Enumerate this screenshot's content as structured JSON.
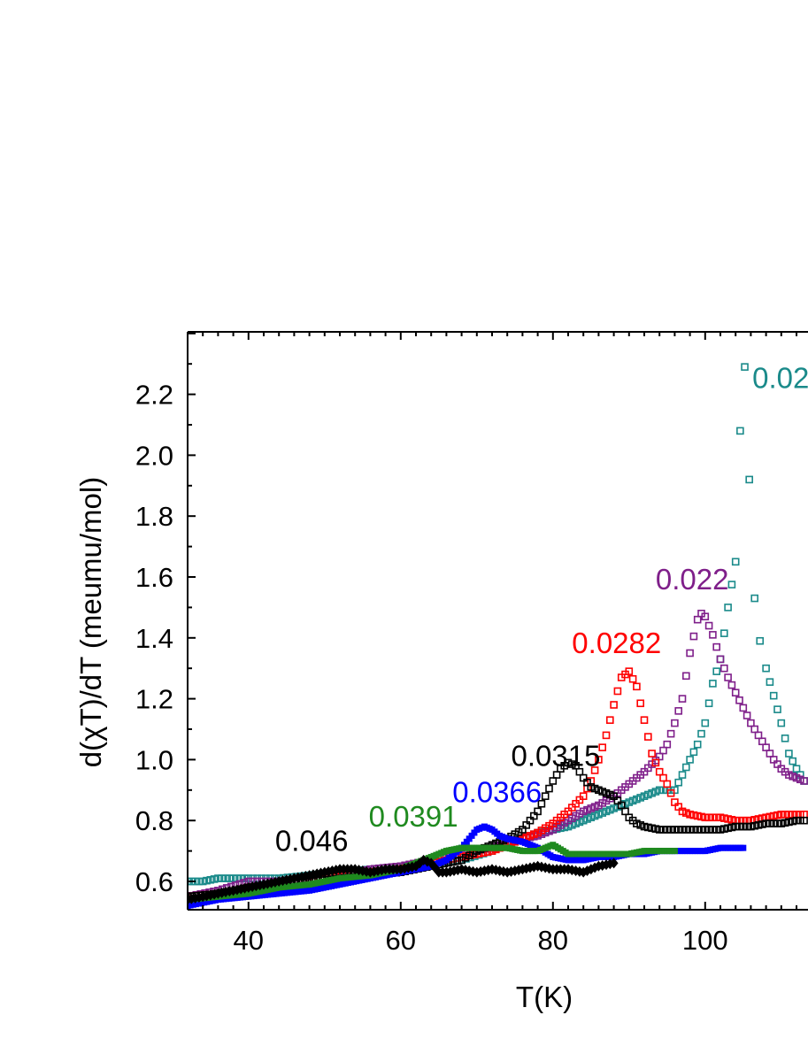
{
  "chart_data": {
    "type": "scatter",
    "xlabel": "T(K)",
    "ylabel": "d(χT)/dT (meumu/mol)",
    "xlim": [
      32,
      114
    ],
    "ylim": [
      0.51,
      2.4
    ],
    "xticks": [
      40,
      60,
      80,
      100
    ],
    "yticks": [
      0.6,
      0.8,
      1.0,
      1.2,
      1.4,
      1.6,
      1.8,
      2.0,
      2.2
    ],
    "ytick_labels": [
      "0.6",
      "0.8",
      "1.0",
      "1.2",
      "1.4",
      "1.6",
      "1.8",
      "2.0",
      "2.2"
    ],
    "series": [
      {
        "name": "0.02",
        "color": "#1a8a8a",
        "marker": "open-square",
        "points": [
          [
            32,
            0.6
          ],
          [
            34,
            0.6
          ],
          [
            36,
            0.61
          ],
          [
            38,
            0.61
          ],
          [
            40,
            0.61
          ],
          [
            44,
            0.61
          ],
          [
            48,
            0.62
          ],
          [
            52,
            0.63
          ],
          [
            56,
            0.64
          ],
          [
            60,
            0.65
          ],
          [
            64,
            0.66
          ],
          [
            68,
            0.67
          ],
          [
            72,
            0.7
          ],
          [
            74,
            0.73
          ],
          [
            76,
            0.74
          ],
          [
            78,
            0.76
          ],
          [
            80,
            0.77
          ],
          [
            82,
            0.78
          ],
          [
            84,
            0.8
          ],
          [
            86,
            0.82
          ],
          [
            88,
            0.84
          ],
          [
            90,
            0.86
          ],
          [
            92,
            0.88
          ],
          [
            94,
            0.9
          ],
          [
            95,
            0.9
          ],
          [
            96,
            0.9
          ],
          [
            97,
            0.95
          ],
          [
            98,
            1.0
          ],
          [
            99,
            1.05
          ],
          [
            100,
            1.12
          ],
          [
            101,
            1.25
          ],
          [
            102,
            1.33
          ],
          [
            103,
            1.5
          ],
          [
            104,
            1.65
          ],
          [
            104.6,
            2.08
          ],
          [
            105.2,
            2.29
          ],
          [
            105.8,
            1.92
          ],
          [
            106.5,
            1.53
          ],
          [
            107.2,
            1.39
          ],
          [
            108,
            1.3
          ],
          [
            109,
            1.21
          ],
          [
            110,
            1.12
          ],
          [
            111,
            1.02
          ],
          [
            112,
            0.97
          ],
          [
            113,
            0.93
          ]
        ]
      },
      {
        "name": "0.022",
        "color": "#7f1f8a",
        "marker": "open-square",
        "points": [
          [
            32,
            0.55
          ],
          [
            36,
            0.57
          ],
          [
            40,
            0.6
          ],
          [
            44,
            0.6
          ],
          [
            48,
            0.61
          ],
          [
            52,
            0.62
          ],
          [
            56,
            0.64
          ],
          [
            60,
            0.65
          ],
          [
            64,
            0.67
          ],
          [
            68,
            0.69
          ],
          [
            72,
            0.71
          ],
          [
            76,
            0.74
          ],
          [
            78,
            0.75
          ],
          [
            80,
            0.77
          ],
          [
            82,
            0.8
          ],
          [
            84,
            0.83
          ],
          [
            86,
            0.85
          ],
          [
            88,
            0.88
          ],
          [
            90,
            0.92
          ],
          [
            92,
            0.96
          ],
          [
            94,
            1.01
          ],
          [
            95,
            1.05
          ],
          [
            96,
            1.12
          ],
          [
            97,
            1.2
          ],
          [
            98,
            1.35
          ],
          [
            99,
            1.46
          ],
          [
            99.5,
            1.48
          ],
          [
            100,
            1.47
          ],
          [
            101,
            1.41
          ],
          [
            102,
            1.33
          ],
          [
            103,
            1.27
          ],
          [
            104,
            1.22
          ],
          [
            105,
            1.17
          ],
          [
            106,
            1.12
          ],
          [
            107,
            1.08
          ],
          [
            108,
            1.04
          ],
          [
            109,
            1.0
          ],
          [
            110,
            0.97
          ],
          [
            111,
            0.95
          ],
          [
            112,
            0.94
          ],
          [
            113,
            0.93
          ]
        ]
      },
      {
        "name": "0.0282",
        "color": "#ff0000",
        "marker": "open-square",
        "points": [
          [
            32,
            0.55
          ],
          [
            36,
            0.56
          ],
          [
            40,
            0.58
          ],
          [
            44,
            0.59
          ],
          [
            48,
            0.6
          ],
          [
            52,
            0.62
          ],
          [
            56,
            0.63
          ],
          [
            60,
            0.64
          ],
          [
            64,
            0.66
          ],
          [
            68,
            0.68
          ],
          [
            72,
            0.7
          ],
          [
            74,
            0.72
          ],
          [
            76,
            0.74
          ],
          [
            78,
            0.76
          ],
          [
            80,
            0.79
          ],
          [
            82,
            0.83
          ],
          [
            84,
            0.88
          ],
          [
            85,
            0.93
          ],
          [
            86,
            1.0
          ],
          [
            87,
            1.08
          ],
          [
            88,
            1.18
          ],
          [
            89,
            1.27
          ],
          [
            90,
            1.29
          ],
          [
            91,
            1.24
          ],
          [
            92,
            1.13
          ],
          [
            93,
            1.02
          ],
          [
            94,
            0.96
          ],
          [
            95,
            0.92
          ],
          [
            96,
            0.86
          ],
          [
            97,
            0.83
          ],
          [
            98,
            0.82
          ],
          [
            100,
            0.81
          ],
          [
            102,
            0.81
          ],
          [
            104,
            0.8
          ],
          [
            106,
            0.8
          ],
          [
            108,
            0.81
          ],
          [
            110,
            0.82
          ],
          [
            112,
            0.82
          ],
          [
            113,
            0.82
          ]
        ]
      },
      {
        "name": "0.0315",
        "color": "#000000",
        "marker": "open-square",
        "points": [
          [
            32,
            0.55
          ],
          [
            36,
            0.56
          ],
          [
            40,
            0.58
          ],
          [
            44,
            0.59
          ],
          [
            48,
            0.6
          ],
          [
            52,
            0.61
          ],
          [
            56,
            0.62
          ],
          [
            60,
            0.63
          ],
          [
            64,
            0.65
          ],
          [
            68,
            0.67
          ],
          [
            70,
            0.7
          ],
          [
            72,
            0.72
          ],
          [
            74,
            0.74
          ],
          [
            76,
            0.77
          ],
          [
            77,
            0.8
          ],
          [
            78,
            0.83
          ],
          [
            79,
            0.88
          ],
          [
            80,
            0.93
          ],
          [
            81,
            0.97
          ],
          [
            82,
            0.99
          ],
          [
            83,
            0.98
          ],
          [
            84,
            0.94
          ],
          [
            85,
            0.91
          ],
          [
            86,
            0.9
          ],
          [
            87,
            0.89
          ],
          [
            88,
            0.88
          ],
          [
            89,
            0.85
          ],
          [
            90,
            0.81
          ],
          [
            91,
            0.79
          ],
          [
            92,
            0.78
          ],
          [
            94,
            0.77
          ],
          [
            96,
            0.77
          ],
          [
            98,
            0.77
          ],
          [
            100,
            0.77
          ],
          [
            102,
            0.77
          ],
          [
            104,
            0.78
          ],
          [
            106,
            0.78
          ],
          [
            108,
            0.79
          ],
          [
            110,
            0.79
          ],
          [
            112,
            0.8
          ],
          [
            113,
            0.8
          ]
        ]
      },
      {
        "name": "0.0366",
        "color": "#0000ff",
        "marker": "filled-square",
        "points": [
          [
            32,
            0.52
          ],
          [
            36,
            0.54
          ],
          [
            40,
            0.55
          ],
          [
            44,
            0.56
          ],
          [
            48,
            0.57
          ],
          [
            52,
            0.59
          ],
          [
            56,
            0.61
          ],
          [
            60,
            0.63
          ],
          [
            64,
            0.65
          ],
          [
            66,
            0.67
          ],
          [
            68,
            0.71
          ],
          [
            69,
            0.74
          ],
          [
            70,
            0.77
          ],
          [
            71,
            0.78
          ],
          [
            72,
            0.77
          ],
          [
            73,
            0.75
          ],
          [
            74,
            0.74
          ],
          [
            76,
            0.73
          ],
          [
            78,
            0.71
          ],
          [
            80,
            0.68
          ],
          [
            82,
            0.67
          ],
          [
            84,
            0.67
          ],
          [
            86,
            0.68
          ],
          [
            88,
            0.68
          ],
          [
            90,
            0.69
          ],
          [
            92,
            0.69
          ],
          [
            94,
            0.7
          ],
          [
            96,
            0.7
          ],
          [
            98,
            0.7
          ],
          [
            100,
            0.7
          ],
          [
            102,
            0.71
          ],
          [
            104,
            0.71
          ],
          [
            105,
            0.71
          ]
        ]
      },
      {
        "name": "0.0391",
        "color": "#1f8a1f",
        "marker": "filled-square",
        "points": [
          [
            32,
            0.54
          ],
          [
            36,
            0.55
          ],
          [
            40,
            0.56
          ],
          [
            44,
            0.58
          ],
          [
            48,
            0.59
          ],
          [
            52,
            0.61
          ],
          [
            56,
            0.62
          ],
          [
            60,
            0.64
          ],
          [
            62,
            0.66
          ],
          [
            64,
            0.68
          ],
          [
            66,
            0.7
          ],
          [
            68,
            0.71
          ],
          [
            70,
            0.71
          ],
          [
            72,
            0.71
          ],
          [
            74,
            0.71
          ],
          [
            76,
            0.7
          ],
          [
            78,
            0.7
          ],
          [
            80,
            0.72
          ],
          [
            82,
            0.69
          ],
          [
            84,
            0.69
          ],
          [
            86,
            0.69
          ],
          [
            88,
            0.69
          ],
          [
            90,
            0.69
          ],
          [
            92,
            0.7
          ],
          [
            94,
            0.7
          ],
          [
            96,
            0.7
          ]
        ]
      },
      {
        "name": "0.046",
        "color": "#000000",
        "marker": "filled-diamond",
        "points": [
          [
            32,
            0.54
          ],
          [
            34,
            0.55
          ],
          [
            36,
            0.56
          ],
          [
            38,
            0.57
          ],
          [
            40,
            0.58
          ],
          [
            42,
            0.59
          ],
          [
            44,
            0.6
          ],
          [
            46,
            0.61
          ],
          [
            48,
            0.62
          ],
          [
            50,
            0.63
          ],
          [
            52,
            0.64
          ],
          [
            54,
            0.64
          ],
          [
            56,
            0.63
          ],
          [
            58,
            0.64
          ],
          [
            60,
            0.64
          ],
          [
            62,
            0.65
          ],
          [
            63,
            0.67
          ],
          [
            64,
            0.66
          ],
          [
            65,
            0.63
          ],
          [
            66,
            0.63
          ],
          [
            68,
            0.64
          ],
          [
            70,
            0.63
          ],
          [
            72,
            0.64
          ],
          [
            74,
            0.63
          ],
          [
            76,
            0.64
          ],
          [
            78,
            0.65
          ],
          [
            80,
            0.64
          ],
          [
            82,
            0.64
          ],
          [
            84,
            0.63
          ],
          [
            86,
            0.65
          ],
          [
            88,
            0.66
          ]
        ]
      }
    ],
    "annotations": [
      {
        "text": "0.02",
        "color": "#1a8a8a",
        "x": 106.2,
        "y": 2.22
      },
      {
        "text": "0.022",
        "color": "#7f1f8a",
        "x": 93.5,
        "y": 1.56
      },
      {
        "text": "0.0282",
        "color": "#ff0000",
        "x": 82.5,
        "y": 1.35
      },
      {
        "text": "0.0315",
        "color": "#000000",
        "x": 74.5,
        "y": 0.98
      },
      {
        "text": "0.0366",
        "color": "#0000ff",
        "x": 66.8,
        "y": 0.86
      },
      {
        "text": "0.0391",
        "color": "#1f8a1f",
        "x": 55.8,
        "y": 0.78
      },
      {
        "text": "0.046",
        "color": "#000000",
        "x": 43.5,
        "y": 0.7
      }
    ]
  }
}
